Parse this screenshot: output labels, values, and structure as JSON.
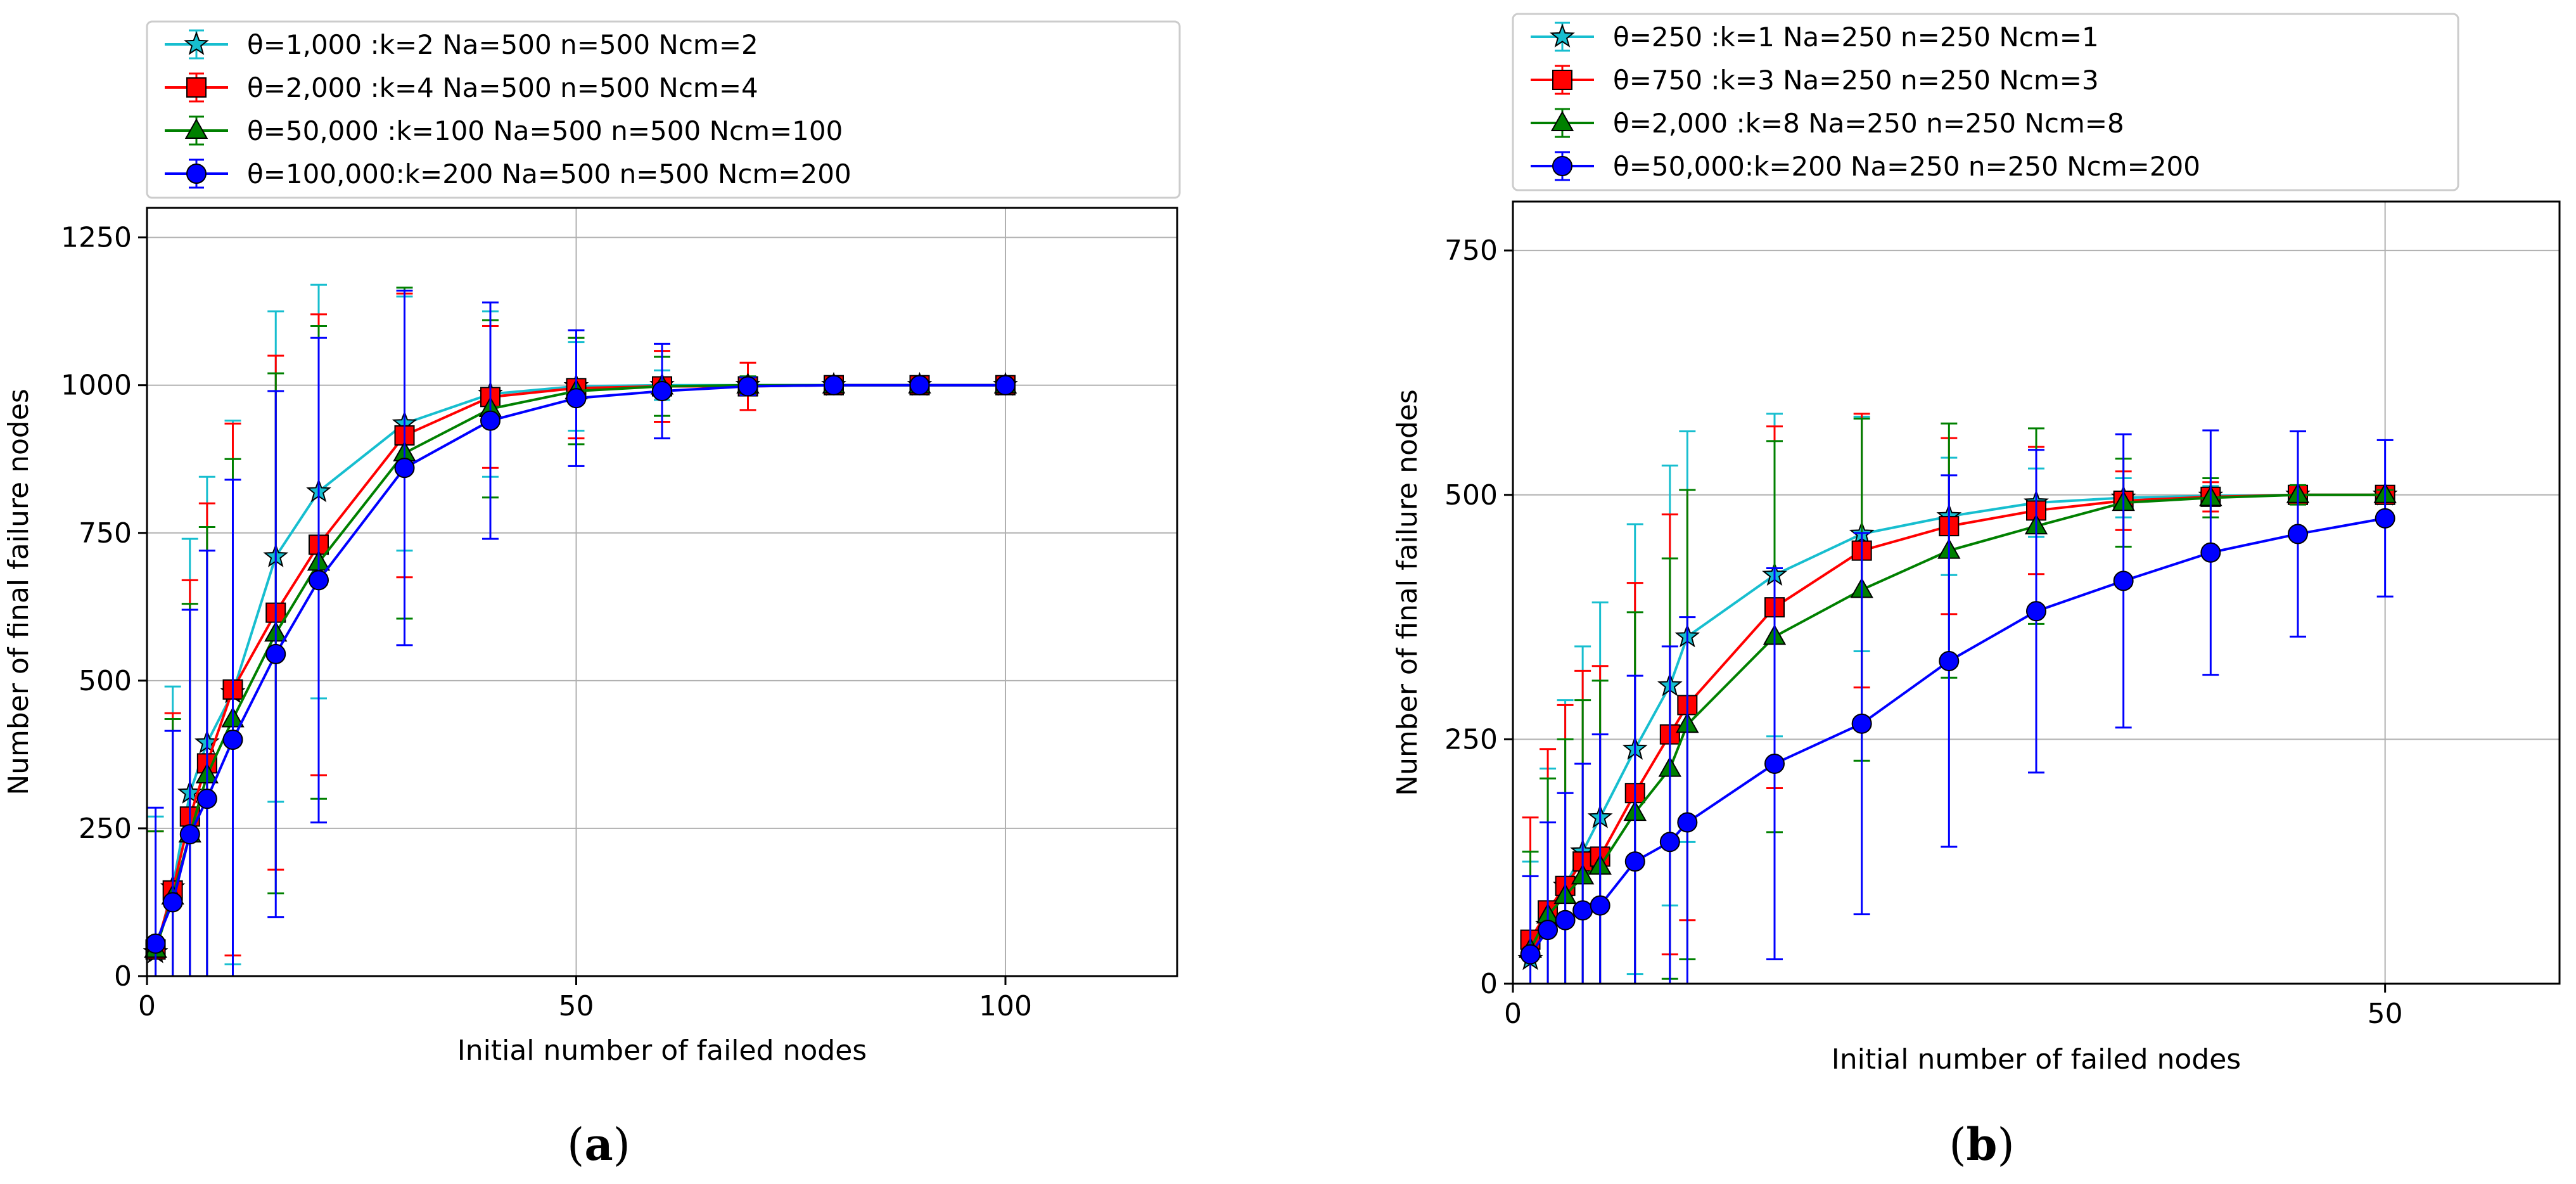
{
  "chart_data": [
    {
      "type": "line",
      "panel_label": "a",
      "xlabel": "Initial number of failed nodes",
      "ylabel": "Number of final failure nodes",
      "xlim": [
        0,
        120
      ],
      "ylim": [
        0,
        1300
      ],
      "xticks": [
        0,
        50,
        100
      ],
      "yticks": [
        0,
        250,
        500,
        750,
        1000,
        1250
      ],
      "grid": true,
      "legend_position": "top",
      "x": [
        1,
        3,
        5,
        7,
        10,
        15,
        20,
        30,
        40,
        50,
        60,
        70,
        80,
        90,
        100
      ],
      "series": [
        {
          "name": "θ=1,000    :k=2 Na=500 n=500 Ncm=2",
          "color": "#17becf",
          "marker": "star",
          "values": [
            40,
            150,
            310,
            395,
            480,
            710,
            820,
            935,
            985,
            998,
            1000,
            1000,
            1000,
            1000,
            1000
          ],
          "errors": [
            230,
            340,
            430,
            450,
            460,
            415,
            350,
            215,
            140,
            75,
            25,
            10,
            5,
            5,
            5
          ]
        },
        {
          "name": "θ=2,000    :k=4 Na=500 n=500 Ncm=4",
          "color": "#ff0000",
          "marker": "square",
          "values": [
            45,
            145,
            270,
            360,
            485,
            615,
            730,
            915,
            980,
            995,
            998,
            998,
            1000,
            1000,
            1000
          ],
          "errors": [
            200,
            300,
            400,
            440,
            450,
            435,
            390,
            240,
            120,
            85,
            60,
            40,
            5,
            5,
            5
          ]
        },
        {
          "name": "θ=50,000  :k=100 Na=500 n=500 Ncm=100",
          "color": "#008000",
          "marker": "triangle",
          "values": [
            45,
            135,
            240,
            340,
            435,
            580,
            700,
            885,
            960,
            990,
            998,
            1000,
            1000,
            1000,
            1000
          ],
          "errors": [
            200,
            300,
            390,
            420,
            440,
            440,
            400,
            280,
            150,
            90,
            50,
            15,
            5,
            5,
            5
          ]
        },
        {
          "name": "θ=100,000:k=200 Na=500 n=500 Ncm=200",
          "color": "#0000ff",
          "marker": "circle",
          "values": [
            55,
            125,
            240,
            300,
            400,
            545,
            670,
            860,
            940,
            978,
            990,
            998,
            1000,
            1000,
            1000
          ],
          "errors": [
            230,
            290,
            380,
            420,
            440,
            445,
            410,
            300,
            200,
            115,
            80,
            15,
            5,
            5,
            5
          ]
        }
      ]
    },
    {
      "type": "line",
      "panel_label": "b",
      "xlabel": "Initial number of failed nodes",
      "ylabel": "Number of final failure nodes",
      "xlim": [
        0,
        60
      ],
      "ylim": [
        0,
        800
      ],
      "xticks": [
        0,
        50
      ],
      "yticks": [
        0,
        250,
        500,
        750
      ],
      "grid": true,
      "legend_position": "top",
      "x": [
        1,
        2,
        3,
        4,
        5,
        7,
        9,
        10,
        15,
        20,
        25,
        30,
        35,
        40,
        45,
        50
      ],
      "series": [
        {
          "name": "θ=250      :k=1 Na=250 n=250 Ncm=1",
          "color": "#17becf",
          "marker": "star",
          "values": [
            25,
            60,
            100,
            135,
            170,
            240,
            305,
            355,
            418,
            460,
            478,
            492,
            497,
            499,
            500,
            500
          ],
          "errors": [
            100,
            160,
            190,
            210,
            220,
            230,
            225,
            210,
            165,
            120,
            60,
            35,
            20,
            10,
            5,
            5
          ]
        },
        {
          "name": "θ=750      :k=3 Na=250 n=250 Ncm=3",
          "color": "#ff0000",
          "marker": "square",
          "values": [
            45,
            75,
            100,
            125,
            130,
            195,
            255,
            285,
            385,
            443,
            468,
            484,
            494,
            498,
            500,
            500
          ],
          "errors": [
            125,
            165,
            185,
            195,
            195,
            215,
            225,
            220,
            185,
            140,
            90,
            65,
            30,
            15,
            5,
            5
          ]
        },
        {
          "name": "θ=2,000   :k=8 Na=250 n=250 Ncm=8",
          "color": "#008000",
          "marker": "triangle",
          "values": [
            35,
            70,
            90,
            110,
            120,
            175,
            220,
            265,
            355,
            403,
            443,
            468,
            492,
            497,
            500,
            500
          ],
          "errors": [
            100,
            140,
            160,
            180,
            190,
            205,
            215,
            240,
            200,
            175,
            130,
            100,
            45,
            20,
            10,
            5
          ]
        },
        {
          "name": "θ=50,000:k=200 Na=250 n=250 Ncm=200",
          "color": "#0000ff",
          "marker": "circle",
          "values": [
            30,
            55,
            65,
            75,
            80,
            125,
            145,
            165,
            225,
            266,
            330,
            381,
            412,
            441,
            460,
            476
          ],
          "errors": [
            80,
            110,
            130,
            150,
            175,
            190,
            200,
            210,
            200,
            195,
            190,
            165,
            150,
            125,
            105,
            80
          ]
        }
      ]
    }
  ]
}
